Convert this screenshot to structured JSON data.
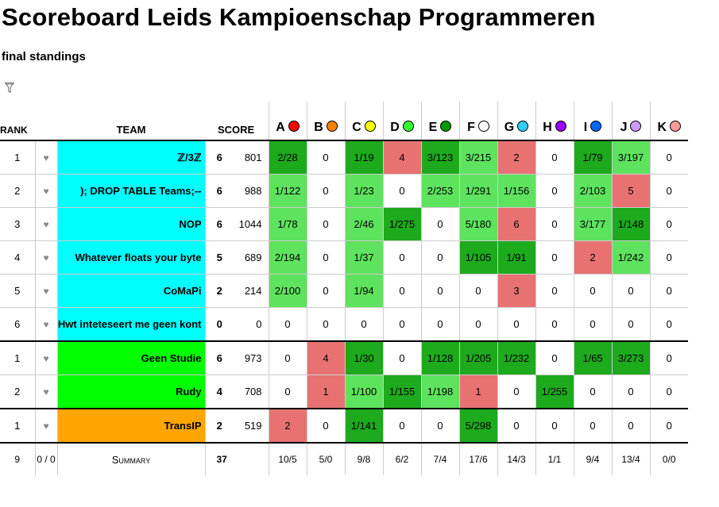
{
  "title": "Scoreboard Leids Kampioenschap Programmeren",
  "subtitle": "final standings",
  "header": {
    "rank": "RANK",
    "team": "TEAM",
    "score": "SCORE"
  },
  "problems": [
    {
      "label": "A",
      "color": "#ff0000"
    },
    {
      "label": "B",
      "color": "#ff8000"
    },
    {
      "label": "C",
      "color": "#ffff00"
    },
    {
      "label": "D",
      "color": "#33ff33"
    },
    {
      "label": "E",
      "color": "#009900"
    },
    {
      "label": "F",
      "color": "#ffffff"
    },
    {
      "label": "G",
      "color": "#33ccff"
    },
    {
      "label": "H",
      "color": "#9900ff"
    },
    {
      "label": "I",
      "color": "#0066ff"
    },
    {
      "label": "J",
      "color": "#cc99ff"
    },
    {
      "label": "K",
      "color": "#ff9999"
    }
  ],
  "teams": [
    {
      "rank": "1",
      "name": "ℤ/3ℤ",
      "color": "#00ffff",
      "solved": "6",
      "penalty": "801",
      "cells": [
        [
          "2/28",
          "first"
        ],
        [
          "0",
          ""
        ],
        [
          "1/19",
          "first"
        ],
        [
          "4",
          "tried"
        ],
        [
          "3/123",
          "first"
        ],
        [
          "3/215",
          "solved"
        ],
        [
          "2",
          "tried"
        ],
        [
          "0",
          ""
        ],
        [
          "1/79",
          "first"
        ],
        [
          "3/197",
          "solved"
        ],
        [
          "0",
          ""
        ]
      ]
    },
    {
      "rank": "2",
      "name": "); DROP TABLE Teams;--",
      "color": "#00ffff",
      "solved": "6",
      "penalty": "988",
      "cells": [
        [
          "1/122",
          "solved"
        ],
        [
          "0",
          ""
        ],
        [
          "1/23",
          "solved"
        ],
        [
          "0",
          ""
        ],
        [
          "2/253",
          "solved"
        ],
        [
          "1/291",
          "solved"
        ],
        [
          "1/156",
          "solved"
        ],
        [
          "0",
          ""
        ],
        [
          "2/103",
          "solved"
        ],
        [
          "5",
          "tried"
        ],
        [
          "0",
          ""
        ]
      ]
    },
    {
      "rank": "3",
      "name": "NOP",
      "color": "#00ffff",
      "solved": "6",
      "penalty": "1044",
      "cells": [
        [
          "1/78",
          "solved"
        ],
        [
          "0",
          ""
        ],
        [
          "2/46",
          "solved"
        ],
        [
          "1/275",
          "first"
        ],
        [
          "0",
          ""
        ],
        [
          "5/180",
          "solved"
        ],
        [
          "6",
          "tried"
        ],
        [
          "0",
          ""
        ],
        [
          "3/177",
          "solved"
        ],
        [
          "1/148",
          "first"
        ],
        [
          "0",
          ""
        ]
      ]
    },
    {
      "rank": "4",
      "name": "Whatever floats your byte",
      "color": "#00ffff",
      "solved": "5",
      "penalty": "689",
      "cells": [
        [
          "2/194",
          "solved"
        ],
        [
          "0",
          ""
        ],
        [
          "1/37",
          "solved"
        ],
        [
          "0",
          ""
        ],
        [
          "0",
          ""
        ],
        [
          "1/105",
          "first"
        ],
        [
          "1/91",
          "first"
        ],
        [
          "0",
          ""
        ],
        [
          "2",
          "tried"
        ],
        [
          "1/242",
          "solved"
        ],
        [
          "0",
          ""
        ]
      ]
    },
    {
      "rank": "5",
      "name": "CoMaPi",
      "color": "#00ffff",
      "solved": "2",
      "penalty": "214",
      "cells": [
        [
          "2/100",
          "solved"
        ],
        [
          "0",
          ""
        ],
        [
          "1/94",
          "solved"
        ],
        [
          "0",
          ""
        ],
        [
          "0",
          ""
        ],
        [
          "0",
          ""
        ],
        [
          "3",
          "tried"
        ],
        [
          "0",
          ""
        ],
        [
          "0",
          ""
        ],
        [
          "0",
          ""
        ],
        [
          "0",
          ""
        ]
      ]
    },
    {
      "rank": "6",
      "name": "Hwt inteteseert me geen kont",
      "color": "#00ffff",
      "solved": "0",
      "penalty": "0",
      "groupEnd": true,
      "cells": [
        [
          "0",
          ""
        ],
        [
          "0",
          ""
        ],
        [
          "0",
          ""
        ],
        [
          "0",
          ""
        ],
        [
          "0",
          ""
        ],
        [
          "0",
          ""
        ],
        [
          "0",
          ""
        ],
        [
          "0",
          ""
        ],
        [
          "0",
          ""
        ],
        [
          "0",
          ""
        ],
        [
          "0",
          ""
        ]
      ]
    },
    {
      "rank": "1",
      "name": "Geen Studie",
      "color": "#00ff00",
      "solved": "6",
      "penalty": "973",
      "cells": [
        [
          "0",
          ""
        ],
        [
          "4",
          "tried"
        ],
        [
          "1/30",
          "first"
        ],
        [
          "0",
          ""
        ],
        [
          "1/128",
          "first"
        ],
        [
          "1/205",
          "first"
        ],
        [
          "1/232",
          "first"
        ],
        [
          "0",
          ""
        ],
        [
          "1/65",
          "first"
        ],
        [
          "3/273",
          "first"
        ],
        [
          "0",
          ""
        ]
      ]
    },
    {
      "rank": "2",
      "name": "Rudy",
      "color": "#00ff00",
      "solved": "4",
      "penalty": "708",
      "groupEnd": true,
      "cells": [
        [
          "0",
          ""
        ],
        [
          "1",
          "tried"
        ],
        [
          "1/100",
          "solved"
        ],
        [
          "1/155",
          "first"
        ],
        [
          "1/198",
          "solved"
        ],
        [
          "1",
          "tried"
        ],
        [
          "0",
          ""
        ],
        [
          "1/255",
          "first"
        ],
        [
          "0",
          ""
        ],
        [
          "0",
          ""
        ],
        [
          "0",
          ""
        ]
      ]
    },
    {
      "rank": "1",
      "name": "TransIP",
      "color": "#ffa500",
      "solved": "2",
      "penalty": "519",
      "groupEnd": true,
      "cells": [
        [
          "2",
          "tried"
        ],
        [
          "0",
          ""
        ],
        [
          "1/141",
          "first"
        ],
        [
          "0",
          ""
        ],
        [
          "0",
          ""
        ],
        [
          "5/298",
          "first"
        ],
        [
          "0",
          ""
        ],
        [
          "0",
          ""
        ],
        [
          "0",
          ""
        ],
        [
          "0",
          ""
        ],
        [
          "0",
          ""
        ]
      ]
    }
  ],
  "summary": {
    "teams": "9",
    "fav": "0 / 0",
    "label": "Summary",
    "total_solved": "37",
    "per_problem": [
      "10/5",
      "5/0",
      "9/8",
      "6/2",
      "7/4",
      "17/6",
      "14/3",
      "1/1",
      "9/4",
      "13/4",
      "0/0"
    ]
  }
}
